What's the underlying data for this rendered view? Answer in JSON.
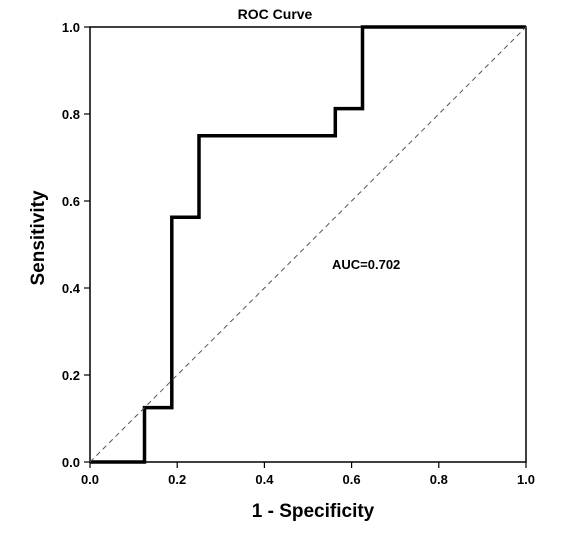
{
  "chart_data": {
    "type": "line",
    "title": "ROC Curve",
    "xlabel": "1 - Specificity",
    "ylabel": "Sensitivity",
    "xlim": [
      0.0,
      1.0
    ],
    "ylim": [
      0.0,
      1.0
    ],
    "x_ticks": [
      "0.0",
      "0.2",
      "0.4",
      "0.6",
      "0.8",
      "1.0"
    ],
    "y_ticks": [
      "0.0",
      "0.2",
      "0.4",
      "0.6",
      "0.8",
      "1.0"
    ],
    "grid": false,
    "annotation": "AUC=0.702",
    "series": [
      {
        "kind": "roc-step",
        "color": "#000000",
        "points": [
          [
            0.0,
            0.0
          ],
          [
            0.125,
            0.0
          ],
          [
            0.125,
            0.125
          ],
          [
            0.1875,
            0.125
          ],
          [
            0.1875,
            0.5625
          ],
          [
            0.25,
            0.5625
          ],
          [
            0.25,
            0.75
          ],
          [
            0.5625,
            0.75
          ],
          [
            0.5625,
            0.8125
          ],
          [
            0.625,
            0.8125
          ],
          [
            0.625,
            1.0
          ],
          [
            1.0,
            1.0
          ]
        ]
      },
      {
        "kind": "reference-diagonal",
        "color": "#555555",
        "points": [
          [
            0.0,
            0.0
          ],
          [
            1.0,
            1.0
          ]
        ]
      }
    ]
  }
}
